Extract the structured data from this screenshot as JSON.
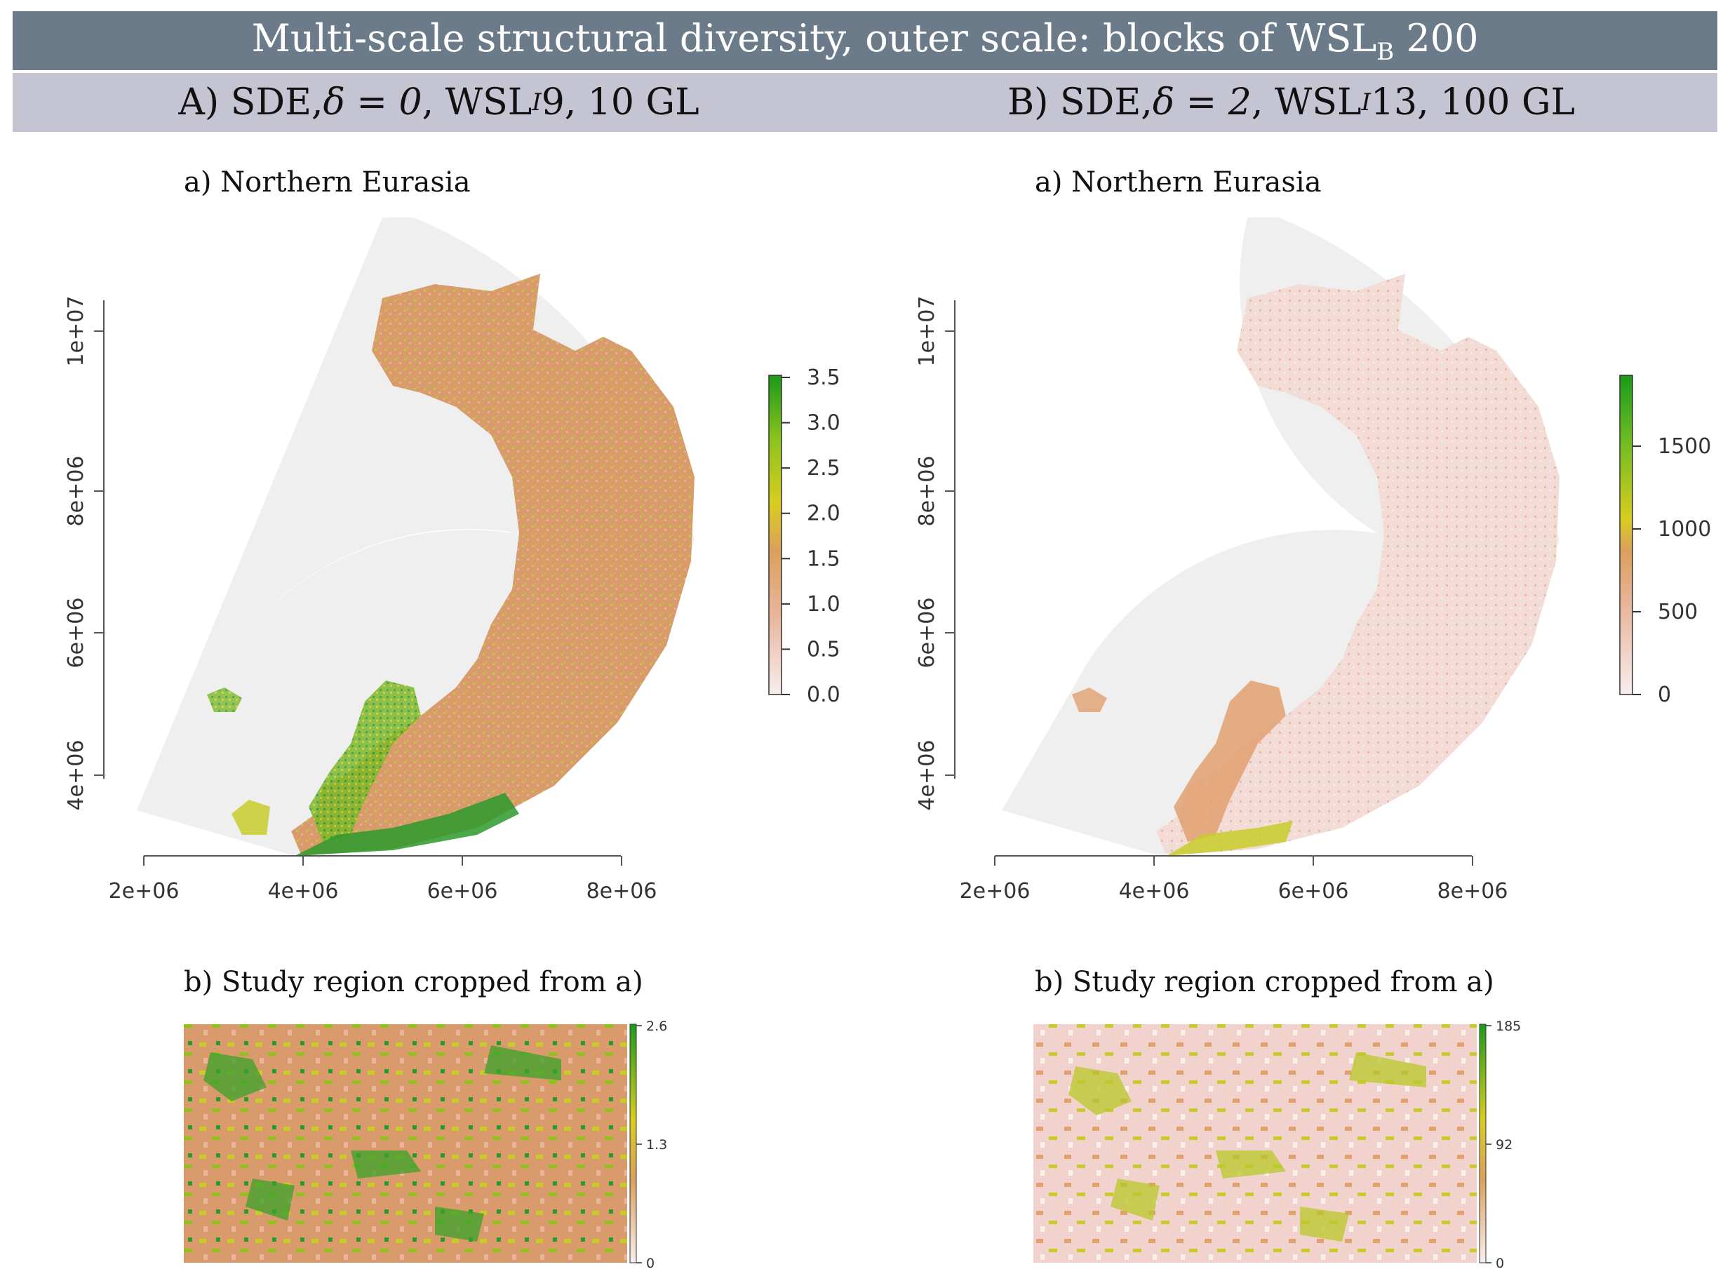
{
  "banner": {
    "title": "Multi-scale structural diversity, outer scale: blocks of WSL",
    "title_sub": "B",
    "title_tail": " 200"
  },
  "panels": [
    {
      "heading": {
        "prefix": "A) SDE, ",
        "delta": "δ = 0",
        "mid": ", WSL",
        "sub": "I",
        "tail": " 9, 10 GL"
      },
      "map_title": "a) Northern Eurasia",
      "crop_title": "b) Study region cropped from a)",
      "x_ticks": [
        "2e+06",
        "4e+06",
        "6e+06",
        "8e+06"
      ],
      "y_ticks": [
        "4e+06",
        "6e+06",
        "8e+06",
        "1e+07"
      ],
      "legend_ticks": [
        "0.0",
        "0.5",
        "1.0",
        "1.5",
        "2.0",
        "2.5",
        "3.0",
        "3.5"
      ],
      "crop_legend_ticks": [
        "0",
        "1.3",
        "2.6"
      ]
    },
    {
      "heading": {
        "prefix": "B) SDE, ",
        "delta": "δ = 2",
        "mid": ", WSL",
        "sub": "I",
        "tail": " 13, 100 GL"
      },
      "map_title": "a) Northern Eurasia",
      "crop_title": "b) Study region cropped from a)",
      "x_ticks": [
        "2e+06",
        "4e+06",
        "6e+06",
        "8e+06"
      ],
      "y_ticks": [
        "4e+06",
        "6e+06",
        "8e+06",
        "1e+07"
      ],
      "legend_ticks": [
        "0",
        "500",
        "1000",
        "1500"
      ],
      "crop_legend_ticks": [
        "0",
        "92",
        "185"
      ]
    }
  ],
  "colors": {
    "banner_bg": "#6b7b8a",
    "subbar_bg": "#c4c4d2",
    "sea": "#efefef",
    "land_low_A": "#d99a6c",
    "land_low_B": "#f2d8d2",
    "mid": "#c8cc2a",
    "high": "#2c9a2c"
  }
}
